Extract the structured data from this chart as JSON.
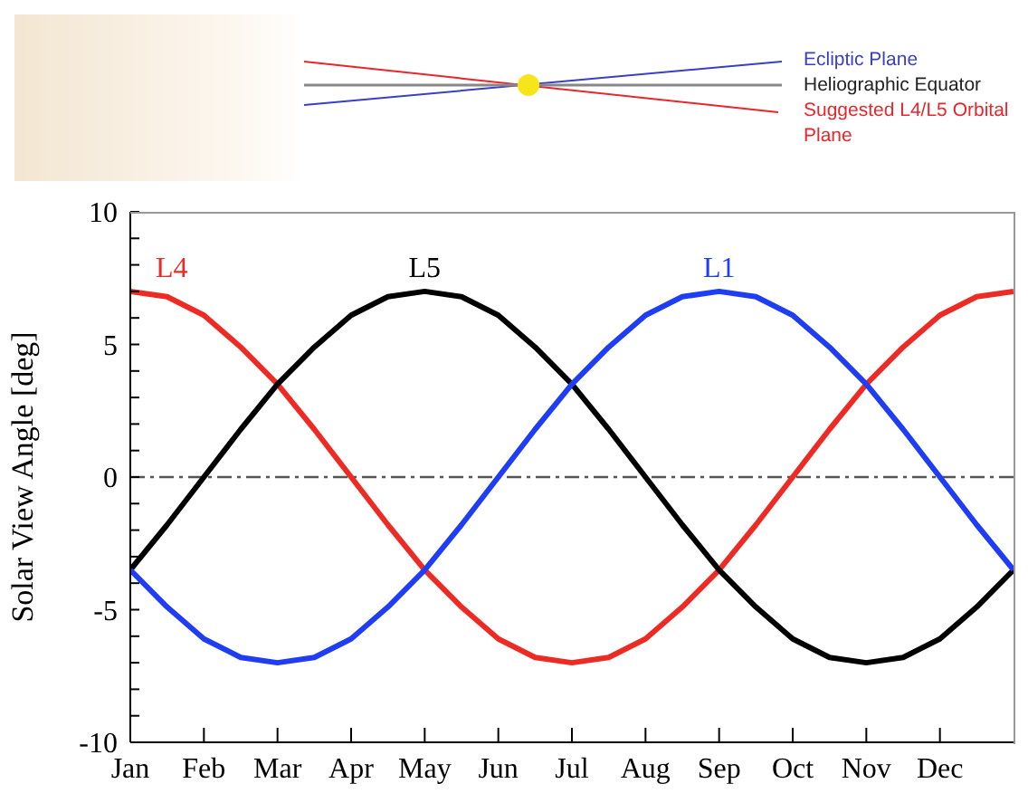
{
  "chart_data": {
    "type": "line",
    "ylabel": "Solar View Angle [deg]",
    "annotations": [
      "Ecliptic Plane",
      "Heliographic Equator",
      "Suggested L4/L5 Orbital Plane"
    ],
    "categories": [
      "Jan",
      null,
      "Feb",
      null,
      "Mar",
      null,
      "Apr",
      null,
      "May",
      null,
      "Jun",
      null,
      "Jul",
      null,
      "Aug",
      null,
      "Sep",
      null,
      "Oct",
      null,
      "Nov",
      null,
      "Dec",
      null,
      null
    ],
    "series": [
      {
        "name": "L4",
        "color": "#ee2a24",
        "values": [
          7,
          6.8,
          6.1,
          4.9,
          3.5,
          1.8,
          0,
          -1.8,
          -3.5,
          -4.9,
          -6.1,
          -6.8,
          -7,
          -6.8,
          -6.1,
          -4.9,
          -3.5,
          -1.8,
          0,
          1.8,
          3.5,
          4.9,
          6.1,
          6.8,
          7
        ]
      },
      {
        "name": "L5",
        "color": "#000000",
        "values": [
          -3.5,
          -1.8,
          0,
          1.8,
          3.5,
          4.9,
          6.1,
          6.8,
          7,
          6.8,
          6.1,
          4.9,
          3.5,
          1.8,
          0,
          -1.8,
          -3.5,
          -4.9,
          -6.1,
          -6.8,
          -7,
          -6.8,
          -6.1,
          -4.9,
          -3.5
        ]
      },
      {
        "name": "L1",
        "color": "#1f3df5",
        "values": [
          -3.5,
          -4.9,
          -6.1,
          -6.8,
          -7,
          -6.8,
          -6.1,
          -4.9,
          -3.5,
          -1.8,
          0,
          1.8,
          3.5,
          4.9,
          6.1,
          6.8,
          7,
          6.8,
          6.1,
          4.9,
          3.5,
          1.8,
          0,
          -1.8,
          -3.5
        ]
      }
    ],
    "ylim": [
      -10,
      10
    ],
    "yticks": [
      -10,
      {
        "value": -9,
        "label": null
      },
      {
        "value": -8,
        "label": null
      },
      {
        "value": -7,
        "label": null
      },
      {
        "value": -6,
        "label": null
      },
      -5,
      {
        "value": -4,
        "label": null
      },
      {
        "value": -3,
        "label": null
      },
      {
        "value": -2,
        "label": null
      },
      {
        "value": -1,
        "label": null
      },
      0,
      {
        "value": 1,
        "label": null
      },
      {
        "value": 2,
        "label": null
      },
      {
        "value": 3,
        "label": null
      },
      {
        "value": 4,
        "label": null
      },
      5,
      {
        "value": 6,
        "label": null
      },
      {
        "value": 7,
        "label": null
      },
      {
        "value": 8,
        "label": null
      },
      {
        "value": 9,
        "label": null
      },
      10
    ],
    "ref_lines": [
      {
        "axis": "y",
        "value": 0,
        "color": "#555555",
        "line_style": "dashdot"
      }
    ],
    "grid": false,
    "legend": false,
    "marker": "none",
    "line_style": "solid"
  }
}
